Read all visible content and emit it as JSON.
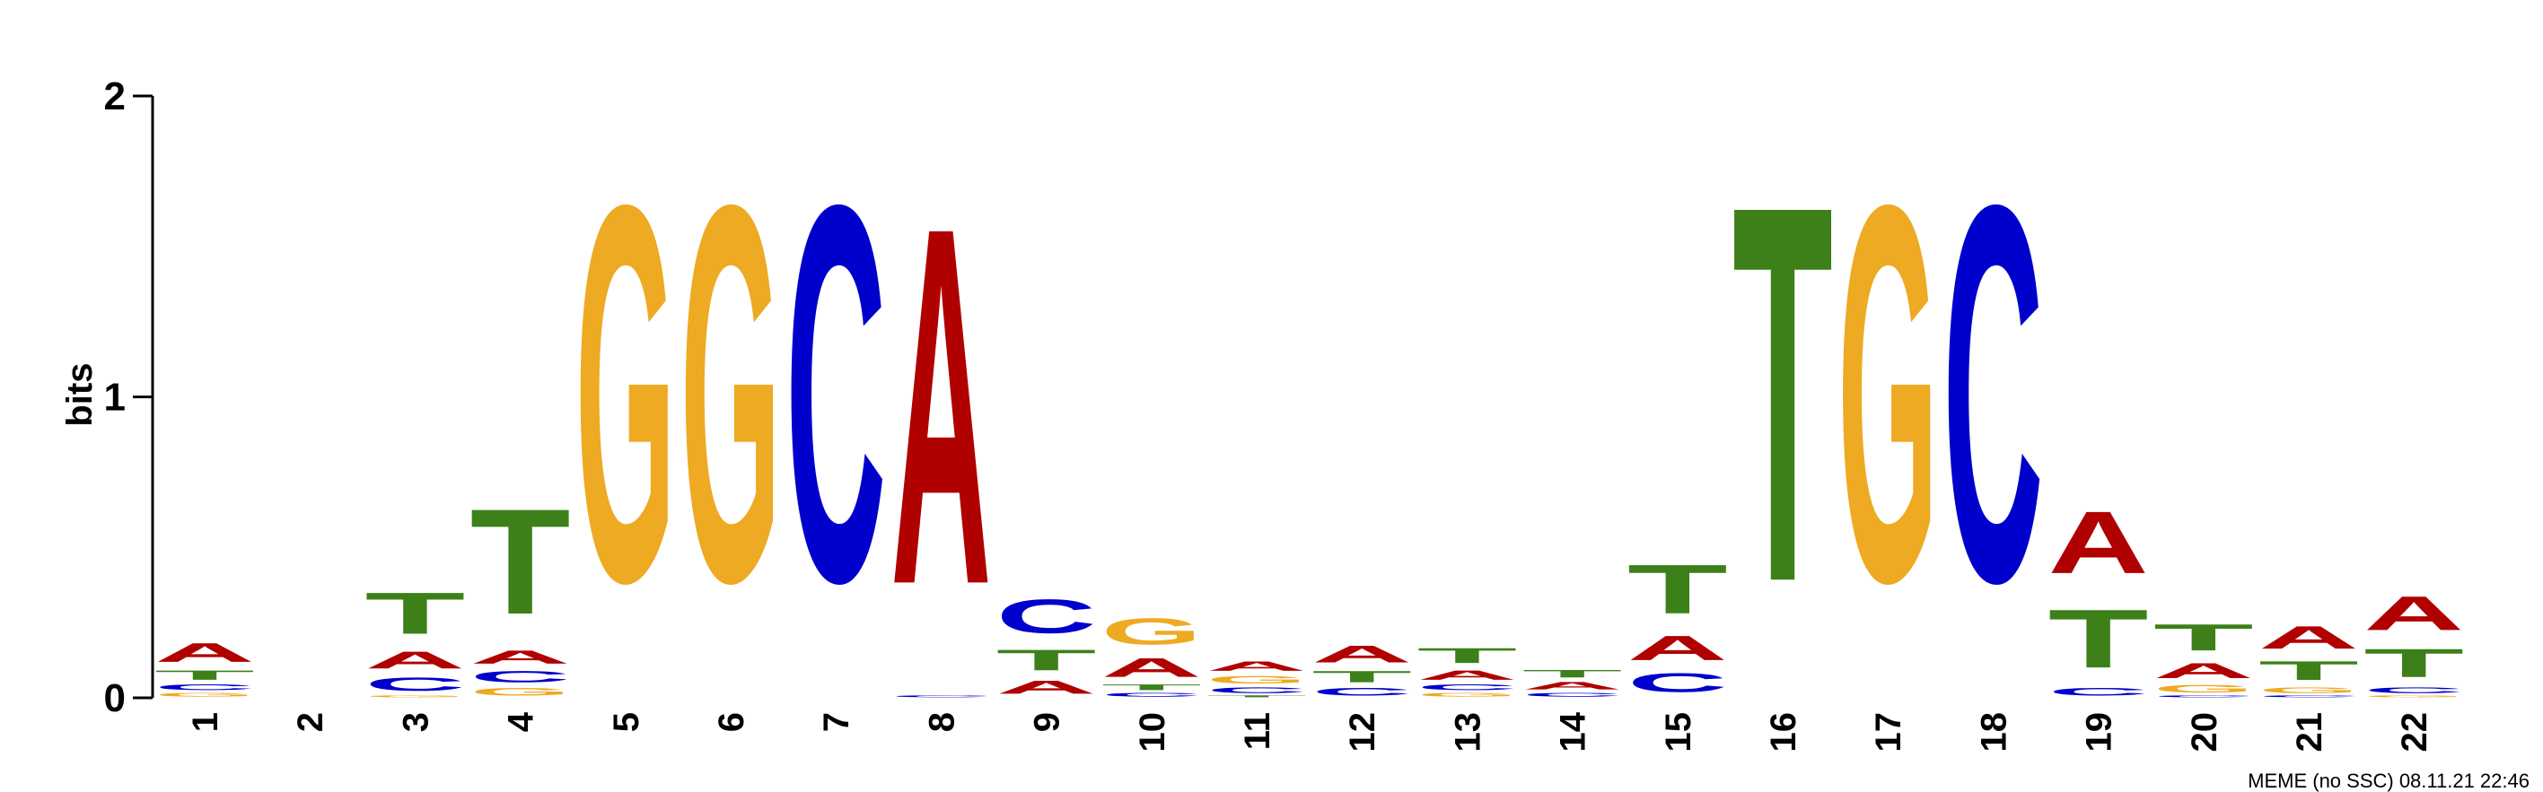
{
  "chart_data": {
    "type": "sequence-logo",
    "ylabel": "bits",
    "ylim": [
      0,
      2
    ],
    "yticks": [
      "0",
      "1",
      "2"
    ],
    "credit": "MEME (no SSC) 08.11.21 22:46",
    "colors": {
      "A": "#b00000",
      "C": "#0000cc",
      "G": "#edaa22",
      "T": "#3d801a"
    },
    "positions": [
      {
        "label": "1",
        "stack": [
          [
            "G",
            0.02
          ],
          [
            "C",
            0.03
          ],
          [
            "T",
            0.05
          ],
          [
            "A",
            0.1
          ]
        ]
      },
      {
        "label": "2",
        "stack": []
      },
      {
        "label": "3",
        "stack": [
          [
            "G",
            0.01
          ],
          [
            "C",
            0.07
          ],
          [
            "A",
            0.09
          ],
          [
            "T",
            0.22
          ]
        ]
      },
      {
        "label": "4",
        "stack": [
          [
            "G",
            0.04
          ],
          [
            "C",
            0.06
          ],
          [
            "A",
            0.07
          ],
          [
            "T",
            0.56
          ]
        ]
      },
      {
        "label": "5",
        "stack": [
          [
            "G",
            2.0
          ]
        ]
      },
      {
        "label": "6",
        "stack": [
          [
            "G",
            2.0
          ]
        ]
      },
      {
        "label": "7",
        "stack": [
          [
            "C",
            2.0
          ]
        ]
      },
      {
        "label": "8",
        "stack": [
          [
            "C",
            0.01
          ],
          [
            "A",
            1.9
          ]
        ]
      },
      {
        "label": "9",
        "stack": [
          [
            "A",
            0.07
          ],
          [
            "T",
            0.11
          ],
          [
            "C",
            0.18
          ]
        ]
      },
      {
        "label": "10",
        "stack": [
          [
            "C",
            0.02
          ],
          [
            "T",
            0.03
          ],
          [
            "A",
            0.1
          ],
          [
            "G",
            0.14
          ]
        ]
      },
      {
        "label": "11",
        "stack": [
          [
            "T",
            0.01
          ],
          [
            "C",
            0.03
          ],
          [
            "G",
            0.04
          ],
          [
            "A",
            0.05
          ]
        ]
      },
      {
        "label": "12",
        "stack": [
          [
            "C",
            0.04
          ],
          [
            "T",
            0.06
          ],
          [
            "A",
            0.09
          ]
        ]
      },
      {
        "label": "13",
        "stack": [
          [
            "G",
            0.02
          ],
          [
            "C",
            0.03
          ],
          [
            "A",
            0.05
          ],
          [
            "T",
            0.08
          ]
        ]
      },
      {
        "label": "14",
        "stack": [
          [
            "C",
            0.02
          ],
          [
            "A",
            0.04
          ],
          [
            "T",
            0.04
          ]
        ]
      },
      {
        "label": "15",
        "stack": [
          [
            "C",
            0.1
          ],
          [
            "A",
            0.13
          ],
          [
            "T",
            0.26
          ]
        ]
      },
      {
        "label": "16",
        "stack": [
          [
            "T",
            2.0
          ]
        ]
      },
      {
        "label": "17",
        "stack": [
          [
            "G",
            2.0
          ]
        ]
      },
      {
        "label": "18",
        "stack": [
          [
            "C",
            2.0
          ]
        ]
      },
      {
        "label": "19",
        "stack": [
          [
            "C",
            0.04
          ],
          [
            "T",
            0.31
          ],
          [
            "A",
            0.33
          ]
        ]
      },
      {
        "label": "20",
        "stack": [
          [
            "C",
            0.01
          ],
          [
            "G",
            0.04
          ],
          [
            "A",
            0.08
          ],
          [
            "T",
            0.14
          ]
        ]
      },
      {
        "label": "21",
        "stack": [
          [
            "C",
            0.01
          ],
          [
            "G",
            0.03
          ],
          [
            "T",
            0.1
          ],
          [
            "A",
            0.12
          ]
        ]
      },
      {
        "label": "22",
        "stack": [
          [
            "G",
            0.01
          ],
          [
            "C",
            0.03
          ],
          [
            "T",
            0.15
          ],
          [
            "A",
            0.18
          ]
        ]
      }
    ]
  }
}
